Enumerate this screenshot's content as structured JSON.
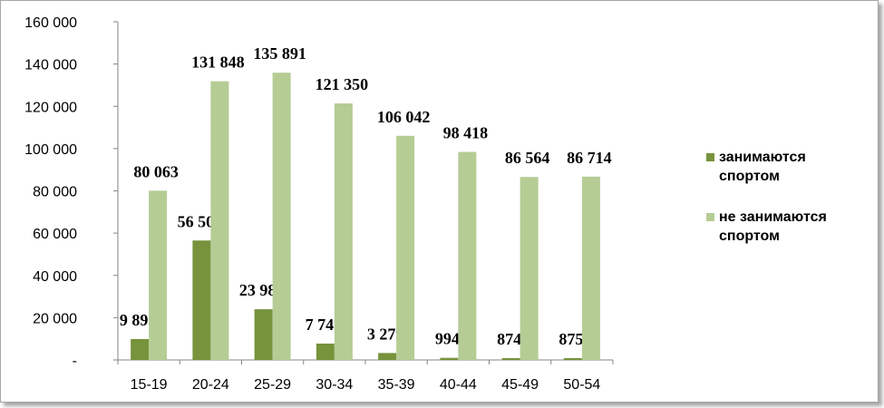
{
  "chart_data": {
    "type": "bar",
    "categories": [
      "15-19",
      "20-24",
      "25-29",
      "30-34",
      "35-39",
      "40-44",
      "45-49",
      "50-54"
    ],
    "series": [
      {
        "name": " занимаются спортом",
        "name_lines": [
          " занимаются",
          "спортом"
        ],
        "color": "#77933c",
        "values": [
          9895,
          56505,
          23980,
          7745,
          3279,
          994,
          874,
          875
        ],
        "labels": [
          "9 895",
          "56 505",
          "23 980",
          "7 745",
          "3 279",
          "994",
          "874",
          "875"
        ]
      },
      {
        "name": "не занимаются спортом",
        "name_lines": [
          "не занимаются",
          "спортом"
        ],
        "color": "#b5cc95",
        "values": [
          80063,
          131848,
          135891,
          121350,
          106042,
          98418,
          86564,
          86714
        ],
        "labels": [
          "80 063",
          "131 848",
          "135 891",
          "121 350",
          "106 042",
          "98 418",
          "86 564",
          "86 714"
        ]
      }
    ],
    "y_ticks": [
      0,
      20000,
      40000,
      60000,
      80000,
      100000,
      120000,
      140000,
      160000
    ],
    "y_tick_labels": [
      "-",
      "20 000",
      "40 000",
      "60 000",
      "80 000",
      "100 000",
      "120 000",
      "140 000",
      "160 000"
    ],
    "ylim": [
      0,
      160000
    ],
    "grid": false,
    "legend_position": "right",
    "title": "",
    "xlabel": "",
    "ylabel": ""
  }
}
